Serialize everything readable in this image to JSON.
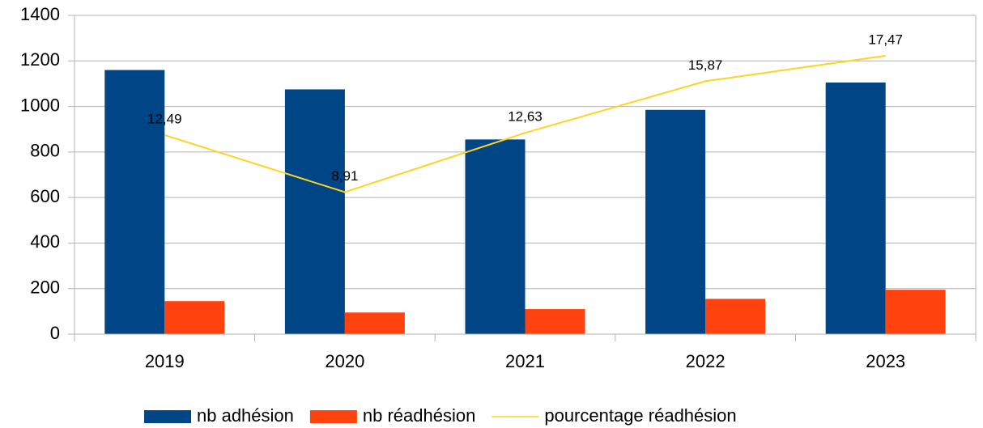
{
  "chart_data": {
    "type": "bar",
    "categories": [
      "2019",
      "2020",
      "2021",
      "2022",
      "2023"
    ],
    "series": [
      {
        "name": "nb adhésion",
        "color": "#004586",
        "values": [
          1160,
          1075,
          855,
          985,
          1105
        ]
      },
      {
        "name": "nb réadhésion",
        "color": "#ff420e",
        "values": [
          145,
          95,
          110,
          155,
          195
        ]
      },
      {
        "name": "pourcentage réadhésion",
        "color": "#ffd320",
        "type": "line",
        "axis": "y2",
        "values": [
          12.49,
          8.91,
          12.63,
          15.87,
          17.47
        ],
        "value_labels": [
          "12,49",
          "8,91",
          "12,63",
          "15,87",
          "17,47"
        ]
      }
    ],
    "ylim": [
      0,
      1400
    ],
    "yticks": [
      0,
      200,
      400,
      600,
      800,
      1000,
      1200,
      1400
    ],
    "y2lim": [
      0,
      20
    ],
    "grid": true,
    "legend": "bottom"
  }
}
